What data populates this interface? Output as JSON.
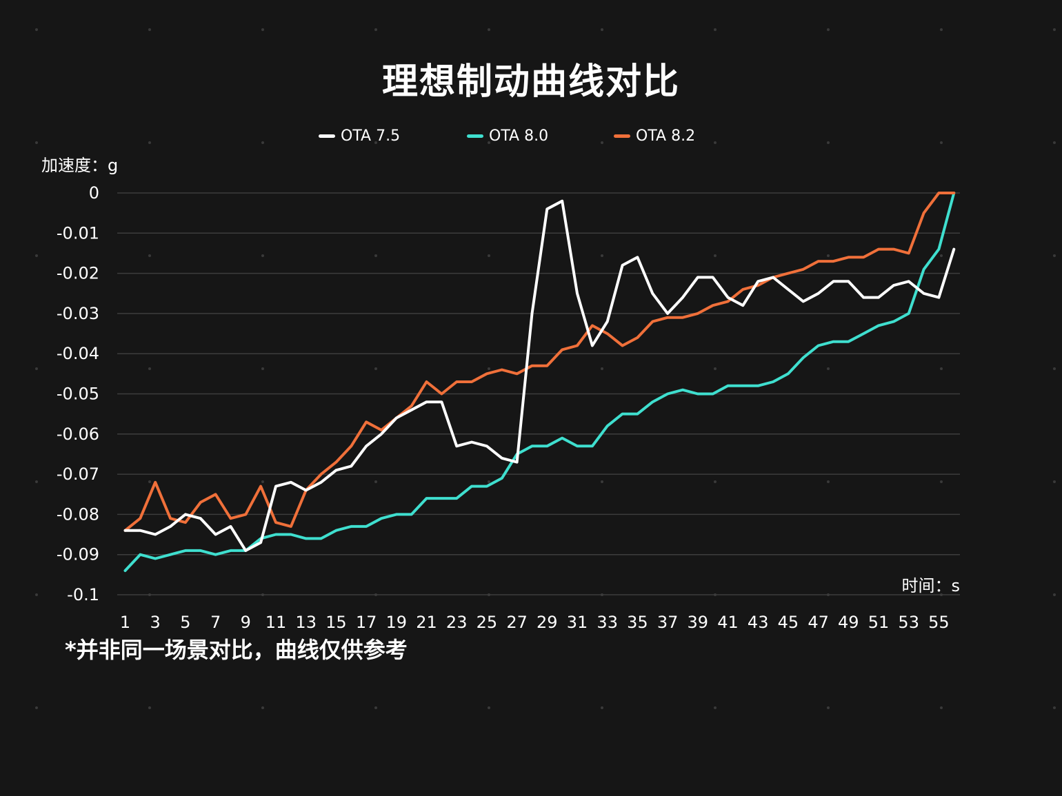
{
  "chart_data": {
    "type": "line",
    "title": "理想制动曲线对比",
    "ylabel": "加速度：g",
    "xlabel": "时间：s",
    "note": "*并非同一场景对比，曲线仅供参考",
    "ylim": [
      -0.1,
      0
    ],
    "yticks": [
      "0",
      "-0.01",
      "-0.02",
      "-0.03",
      "-0.04",
      "-0.05",
      "-0.06",
      "-0.07",
      "-0.08",
      "-0.09",
      "-0.1"
    ],
    "xticks": [
      "1",
      "3",
      "5",
      "7",
      "9",
      "11",
      "13",
      "15",
      "17",
      "19",
      "21",
      "23",
      "25",
      "27",
      "29",
      "31",
      "33",
      "35",
      "37",
      "39",
      "41",
      "43",
      "45",
      "47",
      "49",
      "51",
      "53",
      "55"
    ],
    "legend_position": "top",
    "grid": true,
    "x": [
      1,
      2,
      3,
      4,
      5,
      6,
      7,
      8,
      9,
      10,
      11,
      12,
      13,
      14,
      15,
      16,
      17,
      18,
      19,
      20,
      21,
      22,
      23,
      24,
      25,
      26,
      27,
      28,
      29,
      30,
      31,
      32,
      33,
      34,
      35,
      36,
      37,
      38,
      39,
      40,
      41,
      42,
      43,
      44,
      45,
      46,
      47,
      48,
      49,
      50,
      51,
      52,
      53,
      54,
      55,
      56
    ],
    "series": [
      {
        "name": "OTA 7.5",
        "color": "#ffffff",
        "values": [
          -0.084,
          -0.084,
          -0.085,
          -0.083,
          -0.08,
          -0.081,
          -0.085,
          -0.083,
          -0.089,
          -0.087,
          -0.073,
          -0.072,
          -0.074,
          -0.072,
          -0.069,
          -0.068,
          -0.063,
          -0.06,
          -0.056,
          -0.054,
          -0.052,
          -0.052,
          -0.063,
          -0.062,
          -0.063,
          -0.066,
          -0.067,
          -0.03,
          -0.004,
          -0.002,
          -0.025,
          -0.038,
          -0.032,
          -0.018,
          -0.016,
          -0.025,
          -0.03,
          -0.026,
          -0.021,
          -0.021,
          -0.026,
          -0.028,
          -0.022,
          -0.021,
          -0.024,
          -0.027,
          -0.025,
          -0.022,
          -0.022,
          -0.026,
          -0.026,
          -0.023,
          -0.022,
          -0.025,
          -0.026,
          -0.014
        ]
      },
      {
        "name": "OTA 8.0",
        "color": "#3fdfcf",
        "values": [
          -0.094,
          -0.09,
          -0.091,
          -0.09,
          -0.089,
          -0.089,
          -0.09,
          -0.089,
          -0.089,
          -0.086,
          -0.085,
          -0.085,
          -0.086,
          -0.086,
          -0.084,
          -0.083,
          -0.083,
          -0.081,
          -0.08,
          -0.08,
          -0.076,
          -0.076,
          -0.076,
          -0.073,
          -0.073,
          -0.071,
          -0.065,
          -0.063,
          -0.063,
          -0.061,
          -0.063,
          -0.063,
          -0.058,
          -0.055,
          -0.055,
          -0.052,
          -0.05,
          -0.049,
          -0.05,
          -0.05,
          -0.048,
          -0.048,
          -0.048,
          -0.047,
          -0.045,
          -0.041,
          -0.038,
          -0.037,
          -0.037,
          -0.035,
          -0.033,
          -0.032,
          -0.03,
          -0.019,
          -0.014,
          0
        ]
      },
      {
        "name": "OTA 8.2",
        "color": "#f0703a",
        "values": [
          -0.084,
          -0.081,
          -0.072,
          -0.081,
          -0.082,
          -0.077,
          -0.075,
          -0.081,
          -0.08,
          -0.073,
          -0.082,
          -0.083,
          -0.074,
          -0.07,
          -0.067,
          -0.063,
          -0.057,
          -0.059,
          -0.056,
          -0.053,
          -0.047,
          -0.05,
          -0.047,
          -0.047,
          -0.045,
          -0.044,
          -0.045,
          -0.043,
          -0.043,
          -0.039,
          -0.038,
          -0.033,
          -0.035,
          -0.038,
          -0.036,
          -0.032,
          -0.031,
          -0.031,
          -0.03,
          -0.028,
          -0.027,
          -0.024,
          -0.023,
          -0.021,
          -0.02,
          -0.019,
          -0.017,
          -0.017,
          -0.016,
          -0.016,
          -0.014,
          -0.014,
          -0.015,
          -0.005,
          0,
          0
        ]
      }
    ]
  }
}
